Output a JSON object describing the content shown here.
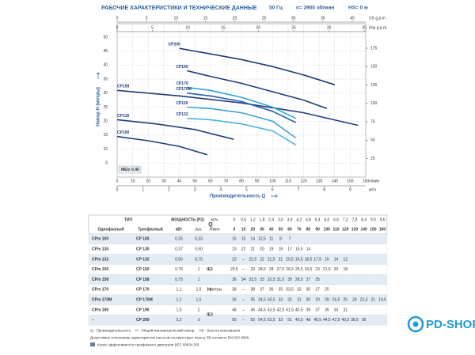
{
  "header": {
    "title": "РАБОЧИЕ ХАРАКТЕРИСТИКИ И ТЕХНИЧЕСКИЕ ДАННЫЕ",
    "freq": "50 Гц",
    "speed": "n= 2900 об/мин",
    "suction": "HS= 0 м"
  },
  "chart_data": {
    "type": "line",
    "y_label": "Напор H (метры)",
    "x_label": "Производительность Q",
    "x_unit": "л/мин",
    "x_m3_unit": "м³/ч",
    "x_us_unit": "US g.p.m.",
    "x_imp_unit": "Imp g.p.m.",
    "mei": "MEI≥ 0,40",
    "xlim": [
      0,
      160
    ],
    "xticks": [
      0,
      10,
      20,
      30,
      40,
      50,
      60,
      70,
      80,
      90,
      100,
      110,
      120,
      130,
      140,
      150,
      160
    ],
    "ylim": [
      0,
      50
    ],
    "yticks": [
      5,
      10,
      15,
      20,
      25,
      30,
      35,
      40,
      45,
      50
    ],
    "y2lim": [
      0,
      190
    ],
    "y2ticks": [
      25,
      50,
      75,
      100,
      125,
      150,
      175
    ],
    "x_m3_lim": [
      0,
      9.6
    ],
    "x_m3_ticks": [
      0,
      1,
      2,
      3,
      4,
      5,
      6,
      7,
      8,
      9
    ],
    "x_us_lim": [
      0,
      42.3
    ],
    "x_us_ticks": [
      0,
      5,
      10,
      15,
      20,
      25,
      30,
      35,
      40
    ],
    "x_imp_lim": [
      0,
      35.2
    ],
    "x_imp_ticks": [
      0,
      5,
      10,
      15,
      20,
      25,
      30,
      35
    ],
    "grid": true,
    "series": [
      {
        "name": "CP200",
        "color": "#1f3d7a",
        "x": [
          40,
          60,
          80,
          100,
          120,
          140
        ],
        "values": [
          46,
          44,
          42,
          39.5,
          36.5,
          33
        ]
      },
      {
        "name": "CP190",
        "color": "#1f3d7a",
        "x": [
          45,
          60,
          80,
          100,
          120,
          135
        ],
        "values": [
          38,
          36,
          33.5,
          30.5,
          27.5,
          24.5
        ]
      },
      {
        "name": "CP158",
        "color": "#1f3d7a",
        "x": [
          0,
          40,
          80,
          120,
          155
        ],
        "values": [
          31,
          29,
          26.5,
          23,
          18.5
        ]
      },
      {
        "name": "CP170",
        "color": "#2fa3dd",
        "x": [
          45,
          60,
          80,
          100,
          115
        ],
        "values": [
          32,
          31,
          28.5,
          25,
          21
        ]
      },
      {
        "name": "CP170M",
        "color": "#2a62a8",
        "x": [
          45,
          60,
          80,
          100,
          115
        ],
        "values": [
          30,
          29,
          27,
          23.5,
          19.5
        ]
      },
      {
        "name": "CP150",
        "color": "#3d9fd6",
        "x": [
          45,
          60,
          80,
          100,
          115
        ],
        "values": [
          25,
          24.5,
          23,
          20,
          14
        ]
      },
      {
        "name": "CP132",
        "color": "#4cb3e3",
        "x": [
          45,
          60,
          80,
          100,
          115
        ],
        "values": [
          21,
          20.5,
          19,
          16.5,
          11.5
        ]
      },
      {
        "name": "CP130",
        "color": "#1f3d7a",
        "x": [
          0,
          25,
          50,
          75
        ],
        "values": [
          20.5,
          19,
          17,
          13.5
        ]
      },
      {
        "name": "CP100",
        "color": "#1f3d7a",
        "x": [
          0,
          20,
          40,
          58
        ],
        "values": [
          14.5,
          13,
          11,
          8
        ]
      }
    ]
  },
  "table": {
    "head": {
      "type": "ТИП",
      "power": "МОЩНОСТЬ (P2)",
      "q": "Q",
      "single": "Однофазный",
      "three": "Трехфазный",
      "kw": "кВт",
      "hp": "л.с.",
      "m3h": "м³/ч",
      "lmin": "л/мин",
      "h": "H",
      "h_unit": "метры"
    },
    "q_m3h": [
      "0",
      "0,6",
      "1,2",
      "1,8",
      "2,4",
      "3,0",
      "3,6",
      "4,2",
      "4,8",
      "5,4",
      "6,0",
      "6,6",
      "7,2",
      "7,8",
      "8,4",
      "9,0",
      "9,6"
    ],
    "q_lmin": [
      "0",
      "10",
      "20",
      "30",
      "40",
      "50",
      "60",
      "70",
      "80",
      "90",
      "100",
      "110",
      "120",
      "130",
      "140",
      "150",
      "160"
    ],
    "ie": [
      "IE2",
      "IE3"
    ],
    "rows": [
      {
        "single": "CPm 100",
        "three": "CP 100",
        "kw": "0,25",
        "hp": "0,33",
        "h": [
          "16",
          "15",
          "14",
          "12,5",
          "11",
          "9",
          "7"
        ]
      },
      {
        "single": "CPm 130",
        "three": "CP 130",
        "kw": "0,37",
        "hp": "0,50",
        "h": [
          "23",
          "22",
          "21",
          "20",
          "19",
          "18",
          "17",
          "15,5",
          "14"
        ]
      },
      {
        "single": "CPm 132",
        "three": "CP 132",
        "kw": "0,55",
        "hp": "0,75",
        "h": [
          "23",
          "–",
          "22,5",
          "22",
          "21,5",
          "21",
          "20,5",
          "19,5",
          "18,5",
          "17,5",
          "16",
          "14",
          "12"
        ]
      },
      {
        "single": "CPm 150",
        "three": "CP 150",
        "kw": "0,75",
        "hp": "1",
        "h": [
          "29,5",
          "–",
          "29",
          "28,5",
          "28",
          "27,5",
          "26,5",
          "25,5",
          "24,5",
          "23",
          "21,5",
          "20",
          "18"
        ]
      },
      {
        "single": "CPm 158",
        "three": "CP 158",
        "kw": "0,75",
        "hp": "1",
        "h": [
          "36",
          "34",
          "33,5",
          "33",
          "32,5",
          "31,5",
          "30",
          "28,5",
          "27",
          "25"
        ]
      },
      {
        "single": "CPm 170",
        "three": "CP 170",
        "kw": "1,1",
        "hp": "1,5",
        "h": [
          "38",
          "–",
          "38",
          "37",
          "36",
          "35",
          "33,5",
          "32",
          "30",
          "27",
          "25"
        ]
      },
      {
        "single": "CPm 170M",
        "three": "CP 170M",
        "kw": "1,1",
        "hp": "1,5",
        "h": [
          "36",
          "–",
          "35",
          "34,5",
          "33,5",
          "33",
          "32",
          "31",
          "30",
          "29",
          "28",
          "26,5",
          "25",
          "24",
          "22,5",
          "21",
          "19,5"
        ]
      },
      {
        "single": "CPm 190",
        "three": "CP 190",
        "kw": "1,5",
        "hp": "2",
        "h": [
          "48",
          "–",
          "46",
          "44,5",
          "43,5",
          "42,5",
          "41,5",
          "40,5",
          "39",
          "37",
          "35",
          "33",
          "31"
        ]
      },
      {
        "single": "–",
        "three": "CP 200",
        "kw": "2,2",
        "hp": "3",
        "h": [
          "56",
          "–",
          "55",
          "54,5",
          "53,5",
          "53",
          "51",
          "49,5",
          "48",
          "46,5",
          "44,5",
          "42,5",
          "40,5",
          "38,5",
          "36"
        ]
      }
    ]
  },
  "footnotes": {
    "legend": [
      "Q - Производительность",
      "H - Общий манометрический напор",
      "HS - Высота всасывания"
    ],
    "tolerance": "Допустимое отклонение характеристик насосов соответствует классу 3B согласно EN ISO 9906.",
    "ie_class": "Класс эффективности трехфазного двигателя (IEC 60034-30)"
  },
  "logo": "PD-SHOP"
}
